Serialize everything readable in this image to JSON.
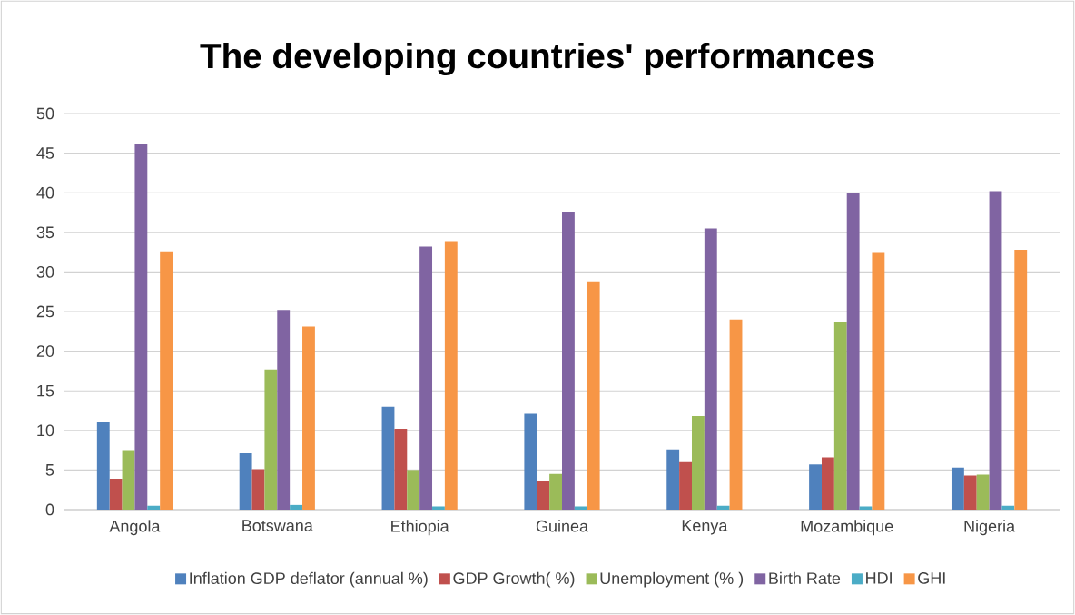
{
  "chart_data": {
    "type": "bar",
    "title": "The developing countries' performances",
    "categories": [
      "Angola",
      "Botswana",
      "Ethiopia",
      "Guinea",
      "Kenya",
      "Mozambique",
      "Nigeria"
    ],
    "series": [
      {
        "name": "Inflation GDP deflator (annual %)",
        "color": "#4f81bd",
        "values": [
          11.1,
          7.1,
          13.0,
          12.1,
          7.6,
          5.7,
          5.3
        ]
      },
      {
        "name": "GDP Growth( %)",
        "color": "#c0504d",
        "values": [
          3.9,
          5.1,
          10.2,
          3.6,
          6.0,
          6.6,
          4.3
        ]
      },
      {
        "name": "Unemployment (% )",
        "color": "#9bbb59",
        "values": [
          7.5,
          17.7,
          5.0,
          4.5,
          11.8,
          23.7,
          4.4
        ]
      },
      {
        "name": "Birth Rate",
        "color": "#8064a2",
        "values": [
          46.2,
          25.2,
          33.2,
          37.6,
          35.5,
          39.9,
          40.2
        ]
      },
      {
        "name": "HDI",
        "color": "#4bacc6",
        "values": [
          0.5,
          0.6,
          0.4,
          0.4,
          0.5,
          0.4,
          0.5
        ]
      },
      {
        "name": "GHI",
        "color": "#f79646",
        "values": [
          32.6,
          23.1,
          33.9,
          28.8,
          24.0,
          32.5,
          32.8
        ]
      }
    ],
    "ylim": [
      0,
      50
    ],
    "yticks": [
      0,
      5,
      10,
      15,
      20,
      25,
      30,
      35,
      40,
      45,
      50
    ],
    "grid": "y",
    "legend": "bottom"
  }
}
